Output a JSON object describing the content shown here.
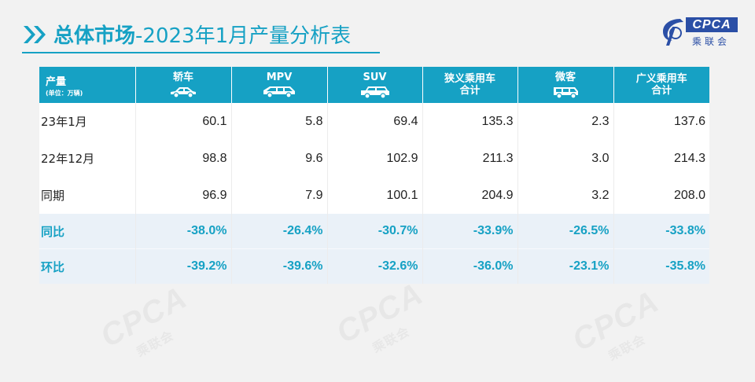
{
  "slide": {
    "title_main": "总体市场",
    "title_sub": "-2023年1月产量分析表",
    "logo_text": "CPCA",
    "logo_cn": "乘联会",
    "watermark_text": "CPCA",
    "watermark_cn": "乘联会"
  },
  "colors": {
    "accent": "#16a1c4",
    "logo_blue": "#2b4fa6",
    "highlight_row_bg": "#eaf1f8"
  },
  "table": {
    "header": {
      "first_label": "产量",
      "first_unit": "(单位：万辆)",
      "columns": [
        {
          "label": "轿车",
          "icon": "sedan-icon"
        },
        {
          "label": "MPV",
          "icon": "mpv-icon"
        },
        {
          "label": "SUV",
          "icon": "suv-icon"
        },
        {
          "label": "狭义乘用车合计",
          "icon": ""
        },
        {
          "label": "微客",
          "icon": "minivan-icon"
        },
        {
          "label": "广义乘用车合计",
          "icon": ""
        }
      ]
    },
    "rows": [
      {
        "label": "23年1月",
        "values": [
          "60.1",
          "5.8",
          "69.4",
          "135.3",
          "2.3",
          "137.6"
        ]
      },
      {
        "label": "22年12月",
        "values": [
          "98.8",
          "9.6",
          "102.9",
          "211.3",
          "3.0",
          "214.3"
        ]
      },
      {
        "label": "同期",
        "values": [
          "96.9",
          "7.9",
          "100.1",
          "204.9",
          "3.2",
          "208.0"
        ]
      },
      {
        "label": "同比",
        "values": [
          "-38.0%",
          "-26.4%",
          "-30.7%",
          "-33.9%",
          "-26.5%",
          "-33.8%"
        ]
      },
      {
        "label": "环比",
        "values": [
          "-39.2%",
          "-39.6%",
          "-32.6%",
          "-36.0%",
          "-23.1%",
          "-35.8%"
        ]
      }
    ]
  }
}
